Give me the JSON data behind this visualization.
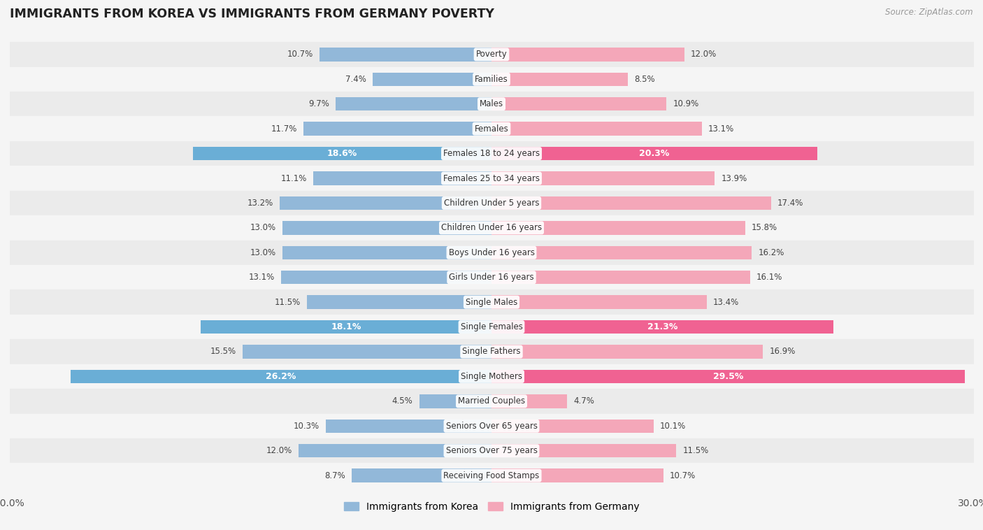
{
  "title": "IMMIGRANTS FROM KOREA VS IMMIGRANTS FROM GERMANY POVERTY",
  "source": "Source: ZipAtlas.com",
  "categories": [
    "Poverty",
    "Families",
    "Males",
    "Females",
    "Females 18 to 24 years",
    "Females 25 to 34 years",
    "Children Under 5 years",
    "Children Under 16 years",
    "Boys Under 16 years",
    "Girls Under 16 years",
    "Single Males",
    "Single Females",
    "Single Fathers",
    "Single Mothers",
    "Married Couples",
    "Seniors Over 65 years",
    "Seniors Over 75 years",
    "Receiving Food Stamps"
  ],
  "korea_values": [
    10.7,
    7.4,
    9.7,
    11.7,
    18.6,
    11.1,
    13.2,
    13.0,
    13.0,
    13.1,
    11.5,
    18.1,
    15.5,
    26.2,
    4.5,
    10.3,
    12.0,
    8.7
  ],
  "germany_values": [
    12.0,
    8.5,
    10.9,
    13.1,
    20.3,
    13.9,
    17.4,
    15.8,
    16.2,
    16.1,
    13.4,
    21.3,
    16.9,
    29.5,
    4.7,
    10.1,
    11.5,
    10.7
  ],
  "korea_color": "#92b8d9",
  "germany_color": "#f4a7b9",
  "korea_highlight_color": "#6aaed6",
  "germany_highlight_color": "#f06292",
  "highlight_rows": [
    4,
    11,
    13
  ],
  "xlim": 30.0,
  "bar_height": 0.55,
  "background_color": "#f5f5f5",
  "row_even_color": "#ebebeb",
  "row_odd_color": "#f5f5f5",
  "legend_korea": "Immigrants from Korea",
  "legend_germany": "Immigrants from Germany"
}
